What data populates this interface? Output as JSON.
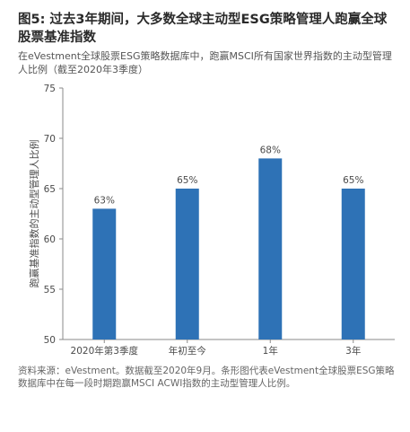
{
  "header": {
    "title": "图5: 过去3年期间，大多数全球主动型ESG策略管理人跑赢全球股票基准指数",
    "subtitle": "在eVestment全球股票ESG策略数据库中，跑赢MSCI所有国家世界指数的主动型管理人比例（截至2020年3季度）"
  },
  "footer": {
    "source": "资料来源：eVestment。数据截至2020年9月。条形图代表eVestment全球股票ESG策略数据库中在每一段时期跑赢MSCI ACWI指数的主动型管理人比例。"
  },
  "chart_data": {
    "type": "bar",
    "title": "图5: 过去3年期间，大多数全球主动型ESG策略管理人跑赢全球股票基准指数",
    "subtitle": "在eVestment全球股票ESG策略数据库中，跑赢MSCI所有国家世界指数的主动型管理人比例（截至2020年3季度）",
    "categories": [
      "2020年第3季度",
      "年初至今",
      "1年",
      "3年"
    ],
    "values": [
      63,
      65,
      68,
      65
    ],
    "data_labels": [
      "63%",
      "65%",
      "68%",
      "65%"
    ],
    "xlabel": "",
    "ylabel": "跑赢基准指数的主动型管理人比例",
    "ylim": [
      50,
      75
    ],
    "yticks": [
      50,
      55,
      60,
      65,
      70,
      75
    ],
    "grid": false,
    "legend": "none",
    "colors": {
      "bar": "#2e72b6",
      "axis": "#8a8a8a",
      "text": "#4a4a4a"
    }
  }
}
